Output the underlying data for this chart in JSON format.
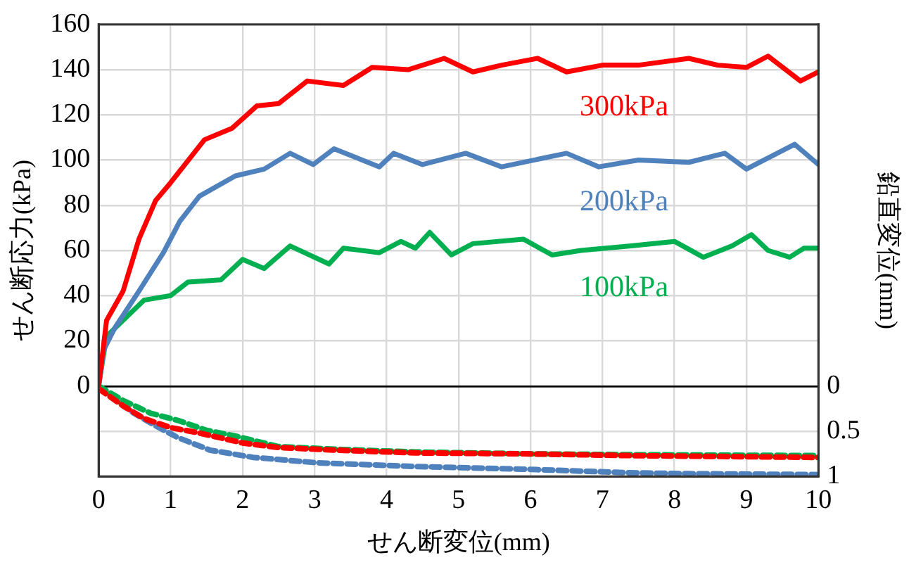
{
  "chart_data": {
    "type": "line",
    "xlabel": "せん断変位(mm)",
    "ylabel": "せん断応力(kPa)",
    "y2label": "鉛直変位(mm)",
    "xlim": [
      0,
      10
    ],
    "xticks": [
      0,
      1,
      2,
      3,
      4,
      5,
      6,
      7,
      8,
      9,
      10
    ],
    "ylim": [
      -40,
      160
    ],
    "yticks": [
      0,
      20,
      40,
      60,
      80,
      100,
      120,
      140,
      160
    ],
    "y2lim": [
      1,
      -4
    ],
    "y2ticks": [
      0,
      0.5,
      1
    ],
    "grid": true,
    "legend": false,
    "marker": "none",
    "series": [
      {
        "name": "300kPa",
        "color": "#ff0000",
        "line_style": "solid",
        "x": [
          0,
          0.11,
          0.34,
          0.56,
          0.79,
          1.0,
          1.47,
          1.85,
          2.2,
          2.5,
          2.9,
          3.4,
          3.8,
          4.3,
          4.8,
          5.2,
          5.6,
          6.1,
          6.5,
          7.0,
          7.5,
          8.2,
          8.6,
          9.0,
          9.3,
          9.75,
          10
        ],
        "values": [
          0,
          29,
          42,
          65,
          82,
          90,
          109,
          114,
          124,
          125,
          135,
          133,
          141,
          140,
          145,
          139,
          142,
          145,
          139,
          142,
          142,
          145,
          142,
          141,
          146,
          135,
          139
        ]
      },
      {
        "name": "200kPa",
        "color": "#4f81bd",
        "line_style": "solid",
        "x": [
          0,
          0.07,
          0.23,
          0.56,
          0.9,
          1.13,
          1.4,
          1.9,
          2.3,
          2.66,
          2.98,
          3.27,
          3.9,
          4.1,
          4.5,
          5.1,
          5.6,
          6.5,
          6.95,
          7.5,
          8.2,
          8.7,
          9.0,
          9.67,
          10
        ],
        "values": [
          0,
          16,
          26,
          42,
          59,
          73,
          84,
          93,
          96,
          103,
          98,
          105,
          97,
          103,
          98,
          103,
          97,
          103,
          97,
          100,
          99,
          103,
          96,
          107,
          98
        ]
      },
      {
        "name": "100kPa",
        "color": "#00b050",
        "line_style": "solid",
        "x": [
          0,
          0.11,
          0.63,
          1.0,
          1.24,
          1.7,
          2.0,
          2.3,
          2.66,
          3.2,
          3.4,
          3.9,
          4.2,
          4.4,
          4.6,
          4.9,
          5.2,
          5.9,
          6.3,
          6.7,
          7.4,
          8.0,
          8.4,
          8.8,
          9.07,
          9.3,
          9.6,
          9.8,
          10
        ],
        "values": [
          0,
          22,
          38,
          40,
          46,
          47,
          56,
          52,
          62,
          54,
          61,
          59,
          64,
          61,
          68,
          58,
          63,
          65,
          58,
          60,
          62,
          64,
          57,
          62,
          67,
          60,
          57,
          61,
          61
        ]
      },
      {
        "color": "#ff0000",
        "line_style": "dashed",
        "axis": "y2",
        "x": [
          0,
          0.34,
          0.63,
          1.0,
          1.4,
          2.0,
          2.5,
          3.3,
          4.4,
          5.9,
          7.4,
          10
        ],
        "values": [
          0.03,
          0.22,
          0.36,
          0.46,
          0.52,
          0.63,
          0.68,
          0.71,
          0.74,
          0.75,
          0.77,
          0.79
        ]
      },
      {
        "color": "#00b050",
        "line_style": "dashed",
        "axis": "y2",
        "x": [
          0,
          0.34,
          0.72,
          1.1,
          1.5,
          1.88,
          2.5,
          3.3,
          4.4,
          5.9,
          7.4,
          10
        ],
        "values": [
          0,
          0.16,
          0.3,
          0.38,
          0.49,
          0.55,
          0.67,
          0.7,
          0.73,
          0.75,
          0.76,
          0.77
        ]
      },
      {
        "color": "#4f81bd",
        "line_style": "dashed",
        "axis": "y2",
        "x": [
          0,
          0.49,
          0.79,
          1.1,
          1.55,
          2.15,
          3.05,
          4.4,
          5.9,
          7.4,
          8.2,
          10
        ],
        "values": [
          0,
          0.3,
          0.44,
          0.57,
          0.71,
          0.79,
          0.85,
          0.89,
          0.92,
          0.96,
          0.97,
          0.98
        ]
      }
    ]
  }
}
